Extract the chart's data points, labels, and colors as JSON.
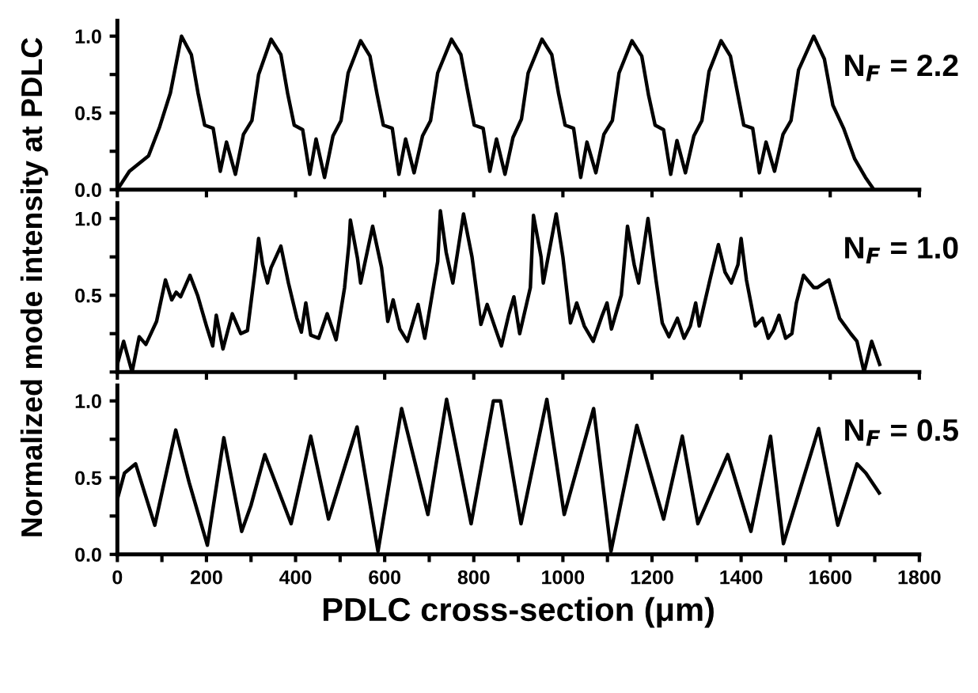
{
  "chart_data": [
    {
      "type": "line",
      "annotations": [
        "N$_{F}$ = 2.2"
      ],
      "xlim": [
        0,
        1800
      ],
      "ylim": [
        0,
        1.1
      ],
      "yticks": [
        {
          "value": 0,
          "label": "0.0"
        },
        {
          "value": 0.25,
          "label": null
        },
        {
          "value": 0.5,
          "label": "0.5"
        },
        {
          "value": 0.75,
          "label": null
        },
        {
          "value": 1,
          "label": "1.0"
        }
      ],
      "xticks": [
        0,
        200,
        400,
        600,
        800,
        1000,
        1200,
        1400,
        1600,
        1800
      ],
      "tick_labels": "y",
      "grid": false,
      "legend": false,
      "series": [
        {
          "color": "#000000",
          "x": [
            0,
            27,
            70,
            95,
            119,
            144,
            166,
            181,
            196,
            215,
            231,
            245,
            265,
            283,
            302,
            317,
            345,
            367,
            382,
            397,
            416,
            432,
            446,
            465,
            484,
            502,
            518,
            546,
            567,
            583,
            597,
            617,
            632,
            647,
            666,
            685,
            703,
            719,
            750,
            771,
            787,
            801,
            821,
            836,
            851,
            870,
            888,
            907,
            922,
            953,
            975,
            990,
            1005,
            1024,
            1040,
            1054,
            1074,
            1092,
            1111,
            1126,
            1155,
            1177,
            1192,
            1207,
            1226,
            1242,
            1256,
            1275,
            1294,
            1312,
            1328,
            1355,
            1376,
            1392,
            1406,
            1426,
            1441,
            1456,
            1475,
            1494,
            1512,
            1529,
            1563,
            1587,
            1606,
            1630,
            1655,
            1679,
            1698
          ],
          "values": [
            0,
            0.12,
            0.22,
            0.41,
            0.63,
            1.0,
            0.88,
            0.63,
            0.42,
            0.4,
            0.12,
            0.31,
            0.1,
            0.36,
            0.45,
            0.75,
            0.98,
            0.88,
            0.63,
            0.42,
            0.39,
            0.1,
            0.33,
            0.08,
            0.35,
            0.45,
            0.76,
            0.97,
            0.87,
            0.62,
            0.42,
            0.4,
            0.1,
            0.33,
            0.11,
            0.35,
            0.45,
            0.76,
            0.98,
            0.88,
            0.63,
            0.42,
            0.4,
            0.12,
            0.33,
            0.1,
            0.34,
            0.46,
            0.76,
            0.98,
            0.88,
            0.63,
            0.42,
            0.4,
            0.08,
            0.31,
            0.11,
            0.36,
            0.45,
            0.76,
            0.97,
            0.87,
            0.62,
            0.42,
            0.39,
            0.1,
            0.32,
            0.11,
            0.35,
            0.45,
            0.77,
            0.97,
            0.87,
            0.63,
            0.42,
            0.4,
            0.11,
            0.31,
            0.12,
            0.36,
            0.45,
            0.78,
            1.0,
            0.85,
            0.55,
            0.4,
            0.2,
            0.08,
            0.0
          ]
        }
      ]
    },
    {
      "type": "line",
      "ylabel": "Normalized mode intensity at PDLC",
      "annotations": [
        "N$_{F}$ = 1.0"
      ],
      "xlim": [
        0,
        1800
      ],
      "ylim": [
        0,
        1.1
      ],
      "yticks": [
        {
          "value": 0,
          "label": null
        },
        {
          "value": 0.25,
          "label": null
        },
        {
          "value": 0.5,
          "label": "0.5"
        },
        {
          "value": 0.75,
          "label": null
        },
        {
          "value": 1,
          "label": "1.0"
        }
      ],
      "xticks": [
        0,
        200,
        400,
        600,
        800,
        1000,
        1200,
        1400,
        1600,
        1800
      ],
      "tick_labels": "y",
      "grid": false,
      "legend": false,
      "series": [
        {
          "color": "#000000",
          "x": [
            0,
            14,
            33,
            49,
            64,
            88,
            108,
            122,
            132,
            142,
            163,
            180,
            200,
            214,
            222,
            237,
            258,
            277,
            292,
            309,
            317,
            326,
            337,
            345,
            367,
            384,
            403,
            413,
            423,
            434,
            452,
            471,
            491,
            510,
            520,
            523,
            539,
            546,
            573,
            593,
            607,
            619,
            634,
            651,
            675,
            690,
            719,
            725,
            738,
            753,
            777,
            796,
            816,
            830,
            850,
            862,
            879,
            890,
            903,
            927,
            934,
            951,
            956,
            985,
            1000,
            1017,
            1031,
            1048,
            1068,
            1087,
            1099,
            1109,
            1131,
            1145,
            1160,
            1170,
            1191,
            1209,
            1223,
            1238,
            1257,
            1272,
            1286,
            1298,
            1306,
            1330,
            1349,
            1364,
            1378,
            1393,
            1400,
            1412,
            1432,
            1448,
            1461,
            1472,
            1485,
            1500,
            1514,
            1524,
            1540,
            1563,
            1571,
            1597,
            1621,
            1646,
            1660,
            1676,
            1693,
            1711
          ],
          "values": [
            0.05,
            0.2,
            0.0,
            0.23,
            0.18,
            0.33,
            0.6,
            0.47,
            0.52,
            0.49,
            0.63,
            0.5,
            0.3,
            0.17,
            0.37,
            0.15,
            0.38,
            0.25,
            0.27,
            0.66,
            0.87,
            0.7,
            0.58,
            0.68,
            0.82,
            0.58,
            0.35,
            0.26,
            0.45,
            0.24,
            0.22,
            0.38,
            0.21,
            0.55,
            0.84,
            0.99,
            0.74,
            0.58,
            0.95,
            0.68,
            0.33,
            0.47,
            0.28,
            0.2,
            0.44,
            0.22,
            0.72,
            1.05,
            0.78,
            0.58,
            1.03,
            0.75,
            0.31,
            0.44,
            0.27,
            0.17,
            0.38,
            0.49,
            0.25,
            0.55,
            1.02,
            0.75,
            0.58,
            1.03,
            0.75,
            0.32,
            0.45,
            0.3,
            0.2,
            0.36,
            0.45,
            0.28,
            0.5,
            0.95,
            0.7,
            0.58,
            1.0,
            0.6,
            0.32,
            0.23,
            0.35,
            0.22,
            0.3,
            0.45,
            0.3,
            0.6,
            0.83,
            0.65,
            0.58,
            0.7,
            0.87,
            0.6,
            0.3,
            0.35,
            0.22,
            0.27,
            0.37,
            0.22,
            0.25,
            0.45,
            0.63,
            0.55,
            0.55,
            0.6,
            0.35,
            0.25,
            0.2,
            0.0,
            0.2,
            0.05
          ]
        }
      ]
    },
    {
      "type": "line",
      "xlabel": "PDLC cross-section (μm)",
      "annotations": [
        "N$_{F}$ = 0.5"
      ],
      "xlim": [
        0,
        1800
      ],
      "ylim": [
        0,
        1.1
      ],
      "yticks": [
        {
          "value": 0,
          "label": "0.0"
        },
        {
          "value": 0.25,
          "label": null
        },
        {
          "value": 0.5,
          "label": "0.5"
        },
        {
          "value": 0.75,
          "label": null
        },
        {
          "value": 1,
          "label": "1.0"
        }
      ],
      "xticks": [
        0,
        {
          "value": 100,
          "label": null
        },
        200,
        {
          "value": 300,
          "label": null
        },
        400,
        {
          "value": 500,
          "label": null
        },
        600,
        {
          "value": 700,
          "label": null
        },
        800,
        {
          "value": 900,
          "label": null
        },
        1000,
        {
          "value": 1100,
          "label": null
        },
        1200,
        {
          "value": 1300,
          "label": null
        },
        1400,
        {
          "value": 1500,
          "label": null
        },
        1600,
        {
          "value": 1700,
          "label": null
        },
        1800
      ],
      "grid": false,
      "legend": false,
      "series": [
        {
          "color": "#000000",
          "x": [
            0,
            16,
            41,
            84,
            131,
            161,
            202,
            239,
            279,
            300,
            331,
            390,
            434,
            474,
            538,
            585,
            638,
            697,
            739,
            794,
            844,
            860,
            906,
            964,
            1003,
            1069,
            1108,
            1166,
            1226,
            1268,
            1303,
            1370,
            1422,
            1466,
            1495,
            1574,
            1617,
            1660,
            1680,
            1710
          ],
          "values": [
            0.36,
            0.53,
            0.59,
            0.19,
            0.81,
            0.47,
            0.06,
            0.76,
            0.15,
            0.32,
            0.65,
            0.2,
            0.77,
            0.23,
            0.83,
            0.02,
            0.95,
            0.26,
            1.01,
            0.2,
            1.0,
            1.0,
            0.2,
            1.01,
            0.26,
            0.95,
            0.02,
            0.84,
            0.23,
            0.77,
            0.2,
            0.65,
            0.15,
            0.77,
            0.07,
            0.82,
            0.19,
            0.59,
            0.53,
            0.4
          ]
        }
      ]
    }
  ]
}
